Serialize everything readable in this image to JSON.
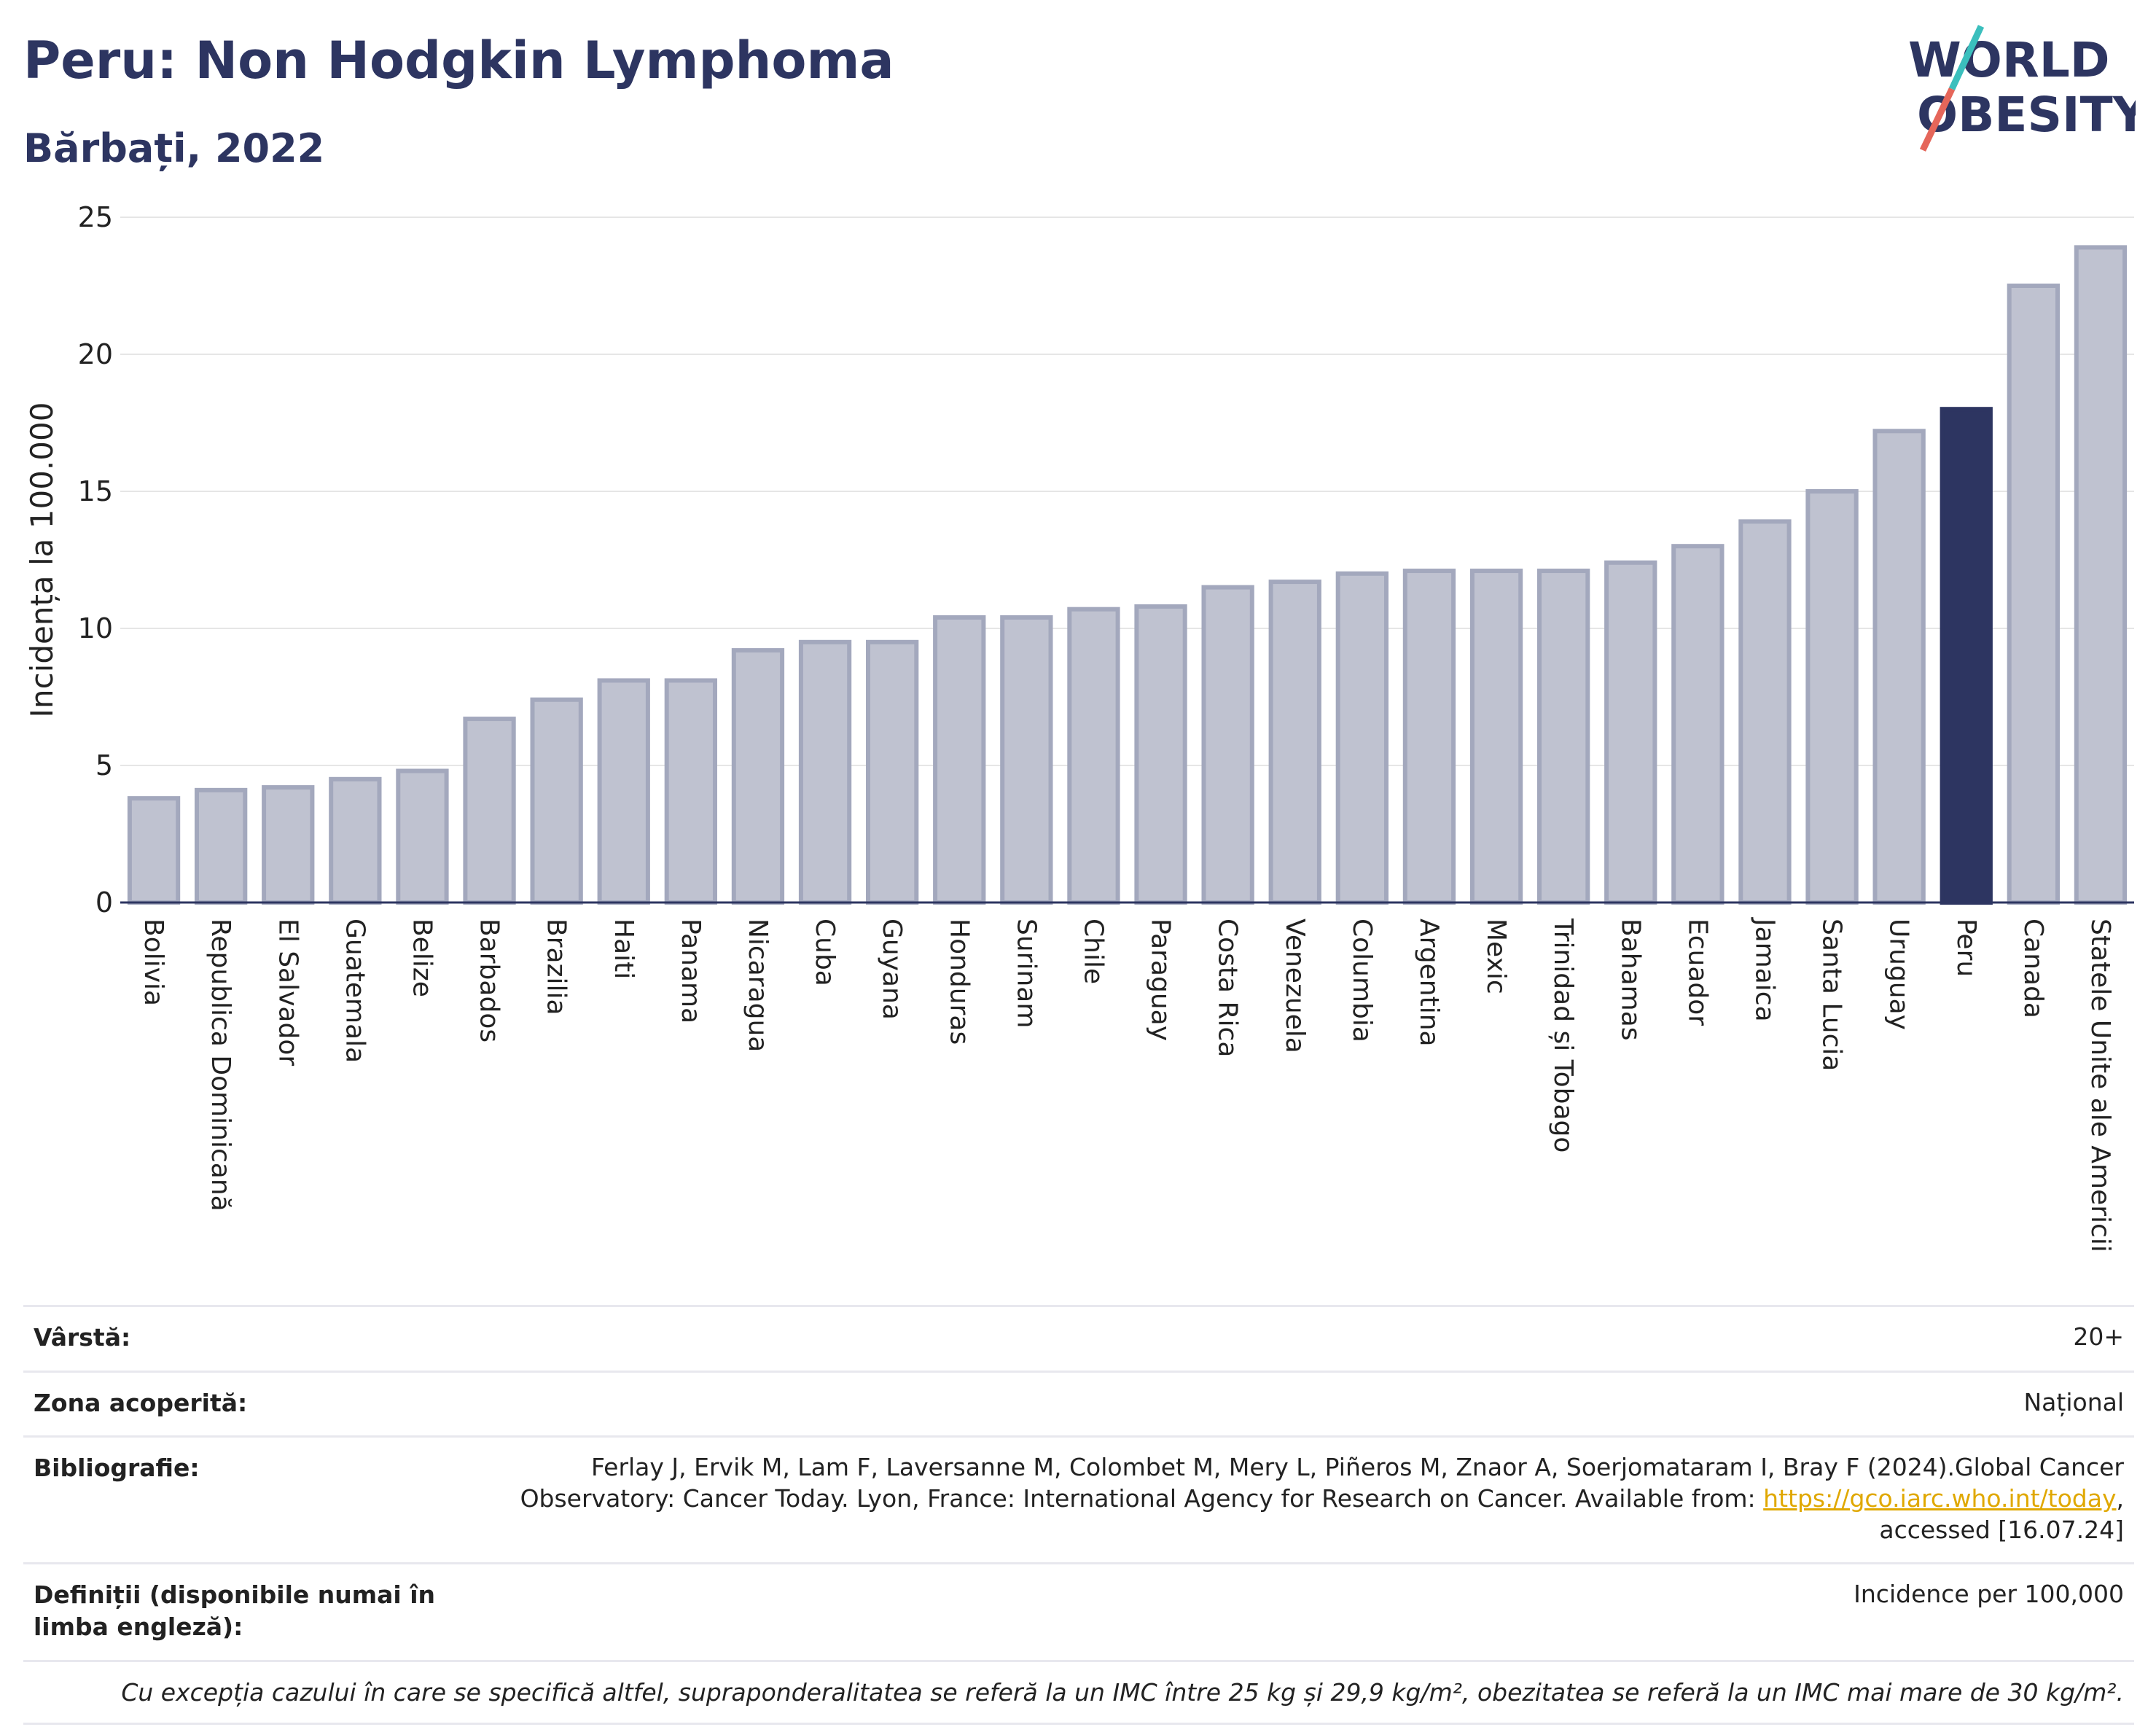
{
  "header": {
    "title": "Peru: Non Hodgkin Lymphoma",
    "subtitle": "Bărbați, 2022"
  },
  "logo": {
    "line1": "WORLD",
    "line2": "OBESITY"
  },
  "colors": {
    "bar": "#bfc2d0",
    "bar_stroke": "#a3a8bd",
    "highlight": "#2d3561",
    "grid": "#e6e6e6",
    "axis": "#2d3561",
    "logo_text": "#2d3561",
    "logo_teal": "#3bbfbd",
    "logo_coral": "#e5665a"
  },
  "chart_data": {
    "type": "bar",
    "title": "Peru: Non Hodgkin Lymphoma",
    "subtitle": "Bărbați, 2022",
    "ylabel": "Incidența la 100.000",
    "xlabel": "",
    "ylim": [
      0,
      25
    ],
    "yticks": [
      0,
      5,
      10,
      15,
      20,
      25
    ],
    "grid": true,
    "highlight": "Peru",
    "categories": [
      "Bolivia",
      "Republica Dominicană",
      "El Salvador",
      "Guatemala",
      "Belize",
      "Barbados",
      "Brazilia",
      "Haiti",
      "Panama",
      "Nicaragua",
      "Cuba",
      "Guyana",
      "Honduras",
      "Surinam",
      "Chile",
      "Paraguay",
      "Costa Rica",
      "Venezuela",
      "Columbia",
      "Argentina",
      "Mexic",
      "Trinidad și Tobago",
      "Bahamas",
      "Ecuador",
      "Jamaica",
      "Santa Lucia",
      "Uruguay",
      "Peru",
      "Canada",
      "Statele Unite ale Americii"
    ],
    "values": [
      3.8,
      4.1,
      4.2,
      4.5,
      4.8,
      6.7,
      7.4,
      8.1,
      8.1,
      9.2,
      9.5,
      9.5,
      10.4,
      10.4,
      10.7,
      10.8,
      11.5,
      11.7,
      12.0,
      12.1,
      12.1,
      12.1,
      12.4,
      13.0,
      13.9,
      15.0,
      17.2,
      18.0,
      22.5,
      23.9
    ]
  },
  "info": {
    "age_label": "Vârstă:",
    "age_value": "20+",
    "coverage_label": "Zona acoperită:",
    "coverage_value": "Național",
    "bibliography_label": "Bibliografie:",
    "bibliography_line1": "Ferlay J, Ervik M, Lam F, Laversanne M, Colombet M, Mery L, Piñeros M, Znaor A, Soerjomataram I, Bray F (2024).Global Cancer",
    "bibliography_line2": "Observatory: Cancer Today. Lyon, France: International Agency for Research on Cancer. Available from: ",
    "bibliography_link": "https://gco.iarc.who.int/today",
    "bibliography_line3": "accessed [16.07.24]",
    "definitions_label": "Definiții (disponibile numai în limba engleză):",
    "definitions_value": "Incidence per 100,000",
    "footnote": "Cu excepția cazului în care se specifică altfel, supraponderalitatea se referă la un IMC între 25 kg și 29,9 kg/m², obezitatea se referă la un IMC mai mare de 30 kg/m²."
  }
}
